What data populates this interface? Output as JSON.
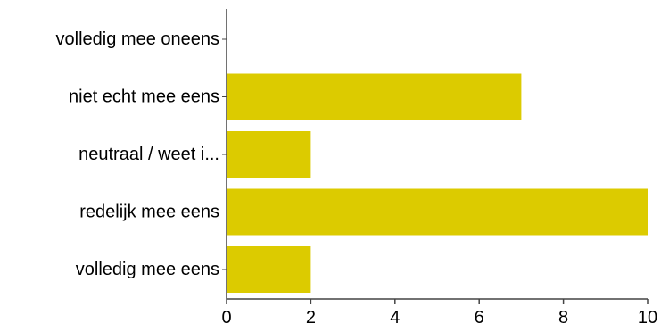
{
  "chart_data": {
    "type": "bar",
    "orientation": "horizontal",
    "categories": [
      "volledig mee oneens",
      "niet echt mee eens",
      "neutraal / weet i...",
      "redelijk mee eens",
      "volledig mee eens"
    ],
    "values": [
      0,
      7,
      2,
      10,
      2
    ],
    "xlim": [
      0,
      10
    ],
    "xticks": [
      0,
      2,
      4,
      6,
      8,
      10
    ],
    "grid": false,
    "title": "",
    "xlabel": "",
    "ylabel": "",
    "colors": {
      "bar": "#dccb00",
      "axis": "#444444"
    }
  }
}
